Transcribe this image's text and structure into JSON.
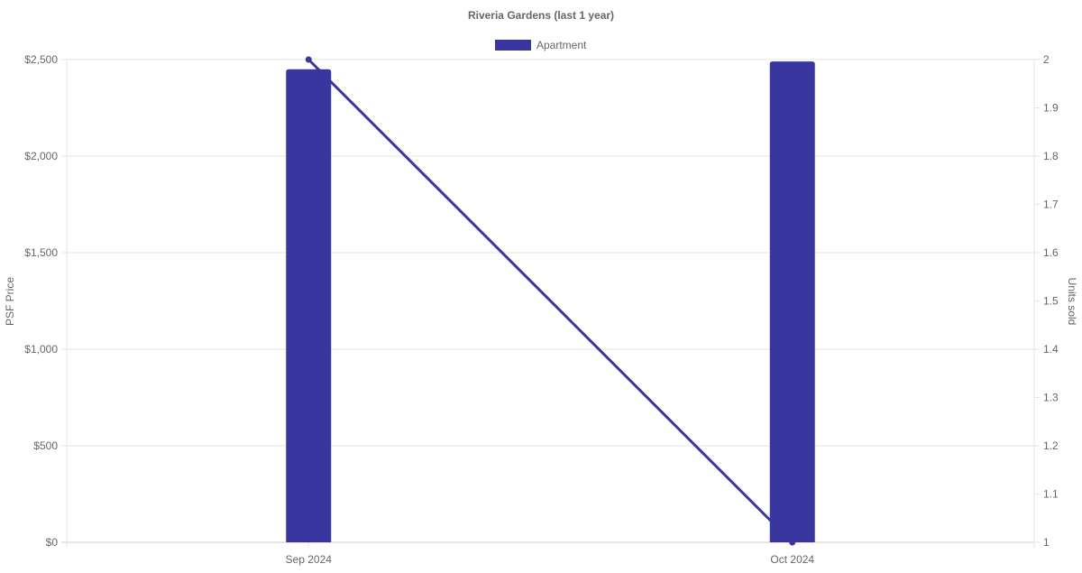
{
  "chart_data": {
    "type": "bar",
    "title": "Riveria Gardens (last 1 year)",
    "categories": [
      "Sep 2024",
      "Oct 2024"
    ],
    "series": [
      {
        "name": "Apartment",
        "type": "bar",
        "axis": "left",
        "values": [
          2450,
          2490
        ]
      },
      {
        "type": "line",
        "axis": "right",
        "values": [
          2,
          1
        ]
      }
    ],
    "ylabel": "PSF Price",
    "y2label": "Units sold",
    "ylim": [
      0,
      2500
    ],
    "y2lim": [
      1,
      2
    ],
    "yticks": [
      "$0",
      "$500",
      "$1,000",
      "$1,500",
      "$2,000",
      "$2,500"
    ],
    "y2ticks": [
      "1",
      "1.1",
      "1.2",
      "1.3",
      "1.4",
      "1.5",
      "1.6",
      "1.7",
      "1.8",
      "1.9",
      "2"
    ],
    "grid": true,
    "legend": "top",
    "color": "#3a36a0"
  }
}
